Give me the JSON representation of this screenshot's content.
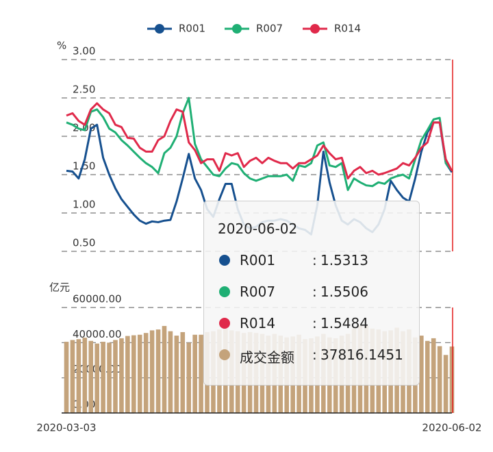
{
  "chart_data": [
    {
      "type": "line",
      "ylabel": "%",
      "legend": "top",
      "grid": true,
      "ylim": [
        0.5,
        3.0
      ],
      "yticks": [
        {
          "value": 0.5,
          "label": "0.50"
        },
        {
          "value": 1.0,
          "label": "1.00"
        },
        {
          "value": 1.5,
          "label": "1.50"
        },
        {
          "value": 2.0,
          "label": "2.00"
        },
        {
          "value": 2.5,
          "label": "2.50"
        },
        {
          "value": 3.0,
          "label": "3.00"
        }
      ],
      "series": [
        {
          "name": "R001",
          "color": "#16508f",
          "values": [
            1.55,
            1.54,
            1.45,
            1.7,
            2.1,
            2.15,
            1.72,
            1.5,
            1.32,
            1.18,
            1.08,
            0.98,
            0.9,
            0.86,
            0.89,
            0.88,
            0.9,
            0.91,
            1.15,
            1.45,
            1.77,
            1.45,
            1.3,
            1.05,
            0.95,
            1.18,
            1.38,
            1.38,
            1.05,
            0.85,
            0.8,
            0.82,
            0.88,
            0.9,
            0.9,
            0.92,
            0.9,
            0.85,
            0.8,
            0.78,
            0.72,
            1.1,
            1.8,
            1.4,
            1.1,
            0.9,
            0.85,
            0.92,
            0.88,
            0.8,
            0.75,
            0.85,
            1.05,
            1.42,
            1.3,
            1.2,
            1.15,
            1.45,
            1.8,
            2.05,
            2.18,
            2.18,
            1.65,
            1.5313
          ]
        },
        {
          "name": "R007",
          "color": "#1faf74",
          "values": [
            2.18,
            2.15,
            2.1,
            2.08,
            2.32,
            2.35,
            2.25,
            2.1,
            2.05,
            1.95,
            1.88,
            1.8,
            1.72,
            1.65,
            1.6,
            1.52,
            1.78,
            1.85,
            2.0,
            2.3,
            2.5,
            1.9,
            1.7,
            1.6,
            1.5,
            1.48,
            1.58,
            1.65,
            1.63,
            1.52,
            1.45,
            1.42,
            1.45,
            1.48,
            1.48,
            1.48,
            1.5,
            1.42,
            1.62,
            1.6,
            1.65,
            1.88,
            1.92,
            1.62,
            1.6,
            1.65,
            1.3,
            1.45,
            1.4,
            1.36,
            1.35,
            1.4,
            1.38,
            1.45,
            1.48,
            1.5,
            1.45,
            1.7,
            1.95,
            2.08,
            2.22,
            2.24,
            1.65,
            1.5506
          ]
        },
        {
          "name": "R014",
          "color": "#e0294a",
          "values": [
            2.27,
            2.3,
            2.2,
            2.15,
            2.35,
            2.43,
            2.35,
            2.3,
            2.15,
            2.12,
            1.98,
            1.97,
            1.85,
            1.8,
            1.8,
            1.95,
            2.0,
            2.2,
            2.35,
            2.32,
            1.92,
            1.82,
            1.65,
            1.7,
            1.7,
            1.55,
            1.78,
            1.75,
            1.78,
            1.6,
            1.68,
            1.72,
            1.65,
            1.72,
            1.68,
            1.65,
            1.65,
            1.58,
            1.65,
            1.65,
            1.7,
            1.75,
            1.88,
            1.78,
            1.7,
            1.72,
            1.45,
            1.55,
            1.6,
            1.52,
            1.55,
            1.5,
            1.52,
            1.55,
            1.58,
            1.65,
            1.62,
            1.72,
            1.85,
            1.92,
            2.18,
            2.18,
            1.7,
            1.5484
          ]
        }
      ]
    },
    {
      "type": "bar",
      "ylabel": "亿元",
      "grid": true,
      "categories": [
        "2020-03-03",
        null,
        null,
        null,
        null,
        null,
        null,
        null,
        null,
        null,
        null,
        null,
        null,
        null,
        null,
        null,
        null,
        null,
        null,
        null,
        null,
        null,
        null,
        null,
        null,
        null,
        null,
        null,
        null,
        null,
        null,
        null,
        null,
        null,
        null,
        null,
        null,
        null,
        null,
        null,
        null,
        null,
        null,
        null,
        null,
        null,
        null,
        null,
        null,
        null,
        null,
        null,
        null,
        null,
        null,
        null,
        null,
        null,
        null,
        null,
        null,
        null,
        null,
        "2020-06-02"
      ],
      "ylim": [
        0,
        60000
      ],
      "yticks": [
        {
          "value": 0,
          "label": "0.00"
        },
        {
          "value": 20000,
          "label": "20000.00"
        },
        {
          "value": 40000,
          "label": "40000.00"
        },
        {
          "value": 60000,
          "label": "60000.00"
        }
      ],
      "series": [
        {
          "name": "成交金额",
          "color": "#c4a37b",
          "values": [
            40500,
            41500,
            42000,
            42800,
            41000,
            39500,
            40500,
            40000,
            41500,
            42500,
            43800,
            44200,
            44500,
            45500,
            47000,
            47500,
            49500,
            46500,
            44000,
            46000,
            40000,
            44500,
            44500,
            46000,
            46500,
            47500,
            48000,
            47000,
            46500,
            45500,
            46000,
            45500,
            45000,
            44000,
            45000,
            44000,
            43000,
            43500,
            44500,
            42000,
            42500,
            43500,
            45000,
            43000,
            42500,
            44000,
            45000,
            48000,
            50000,
            49500,
            48000,
            47500,
            46500,
            47000,
            48500,
            46500,
            47500,
            43000,
            44000,
            41000,
            42500,
            38000,
            33000,
            37816.1451
          ]
        }
      ]
    }
  ],
  "tooltip": {
    "title": "2020-06-02",
    "separator": ":",
    "items": [
      {
        "name": "R001",
        "color": "#16508f",
        "value": 1.5313
      },
      {
        "name": "R007",
        "color": "#1faf74",
        "value": 1.5506
      },
      {
        "name": "R014",
        "color": "#e0294a",
        "value": 1.5484
      },
      {
        "name": "成交金额",
        "color": "#c4a37b",
        "value": 37816.1451
      }
    ]
  }
}
